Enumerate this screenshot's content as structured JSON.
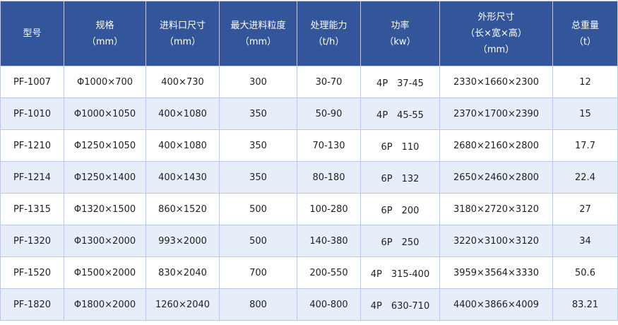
{
  "headers": [
    [
      "型号"
    ],
    [
      "规格",
      "（mm）"
    ],
    [
      "进料口尺寸",
      "（mm）"
    ],
    [
      "最大进料粒度",
      "（mm）"
    ],
    [
      "处理能力",
      "（t/h）"
    ],
    [
      "功率",
      "（kw）"
    ],
    [
      "外形尺寸",
      "（长×宽×高）",
      "（mm）"
    ],
    [
      "总重量",
      "（t）"
    ]
  ],
  "rows": [
    [
      "PF-1007",
      "Φ1000×700",
      "400×730",
      "300",
      "30-70",
      "4P　37-45",
      "2330×1660×2300",
      "12"
    ],
    [
      "PF-1010",
      "Φ1000×1050",
      "400×1080",
      "350",
      "50-90",
      "4P　45-55",
      "2370×1700×2390",
      "15"
    ],
    [
      "PF-1210",
      "Φ1250×1050",
      "400×1080",
      "350",
      "70-130",
      "6P　110",
      "2680×2160×2800",
      "17.7"
    ],
    [
      "PF-1214",
      "Φ1250×1400",
      "400×1430",
      "350",
      "80-180",
      "6P　132",
      "2650×2460×2800",
      "22.4"
    ],
    [
      "PF-1315",
      "Φ1320×1500",
      "860×1520",
      "500",
      "100-280",
      "6P　200",
      "3180×2720×3120",
      "27"
    ],
    [
      "PF-1320",
      "Φ1300×2000",
      "993×2000",
      "500",
      "140-380",
      "6P　250",
      "3220×3100×3120",
      "34"
    ],
    [
      "PF-1520",
      "Φ1500×2000",
      "830×2040",
      "700",
      "200-550",
      "4P　315-400",
      "3959×3564×3330",
      "50.6"
    ],
    [
      "PF-1820",
      "Φ1800×2000",
      "1260×2040",
      "800",
      "400-800",
      "4P　630-710",
      "4400×3866×4009",
      "83.21"
    ]
  ],
  "colors": {
    "header_bg": "#33569a",
    "alt_row_bg": "#e6eef9",
    "border": "#bcc8ea"
  }
}
